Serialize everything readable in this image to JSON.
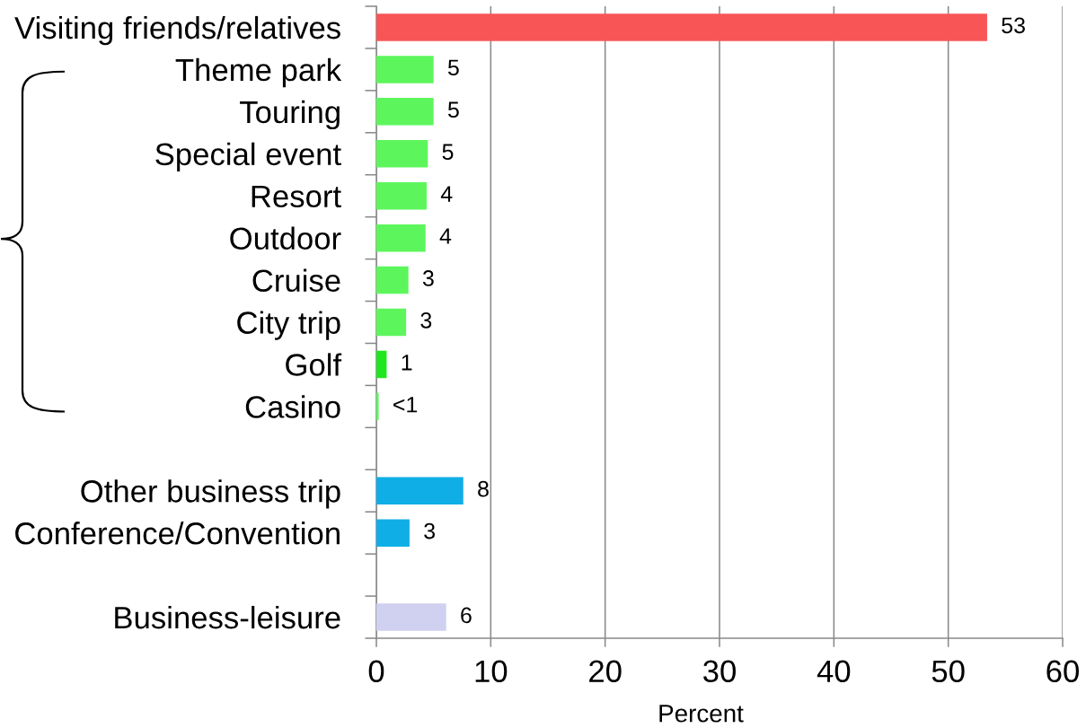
{
  "chart_data": {
    "type": "bar",
    "orientation": "horizontal",
    "xlabel": "Percent",
    "categories": [
      "Visiting friends/relatives",
      "Theme park",
      "Touring",
      "Special event",
      "Resort",
      "Outdoor",
      "Cruise",
      "City trip",
      "Golf",
      "Casino",
      null,
      "Other business trip",
      "Conference/Convention",
      null,
      "Business-leisure"
    ],
    "values": [
      53.4,
      5.0,
      5.0,
      4.5,
      4.4,
      4.3,
      2.8,
      2.6,
      0.9,
      0.2,
      null,
      7.6,
      2.9,
      null,
      6.1
    ],
    "colors": [
      "#f85656",
      "#5cf65c",
      "#5cf65c",
      "#5cf65c",
      "#5cf65c",
      "#5cf65c",
      "#5cf65c",
      "#5cf65c",
      "#20e620",
      "#5cf65c",
      null,
      "#10aee6",
      "#10aee6",
      null,
      "#d0d0f0"
    ],
    "value_labels": [
      "53",
      "5",
      "5",
      "5",
      "4",
      "4",
      "3",
      "3",
      "1",
      "<1",
      null,
      "8",
      "3",
      null,
      "6"
    ],
    "xlim": [
      0,
      60
    ],
    "xticks": [
      0,
      10,
      20,
      30,
      40,
      50,
      60
    ],
    "grid": "x"
  }
}
